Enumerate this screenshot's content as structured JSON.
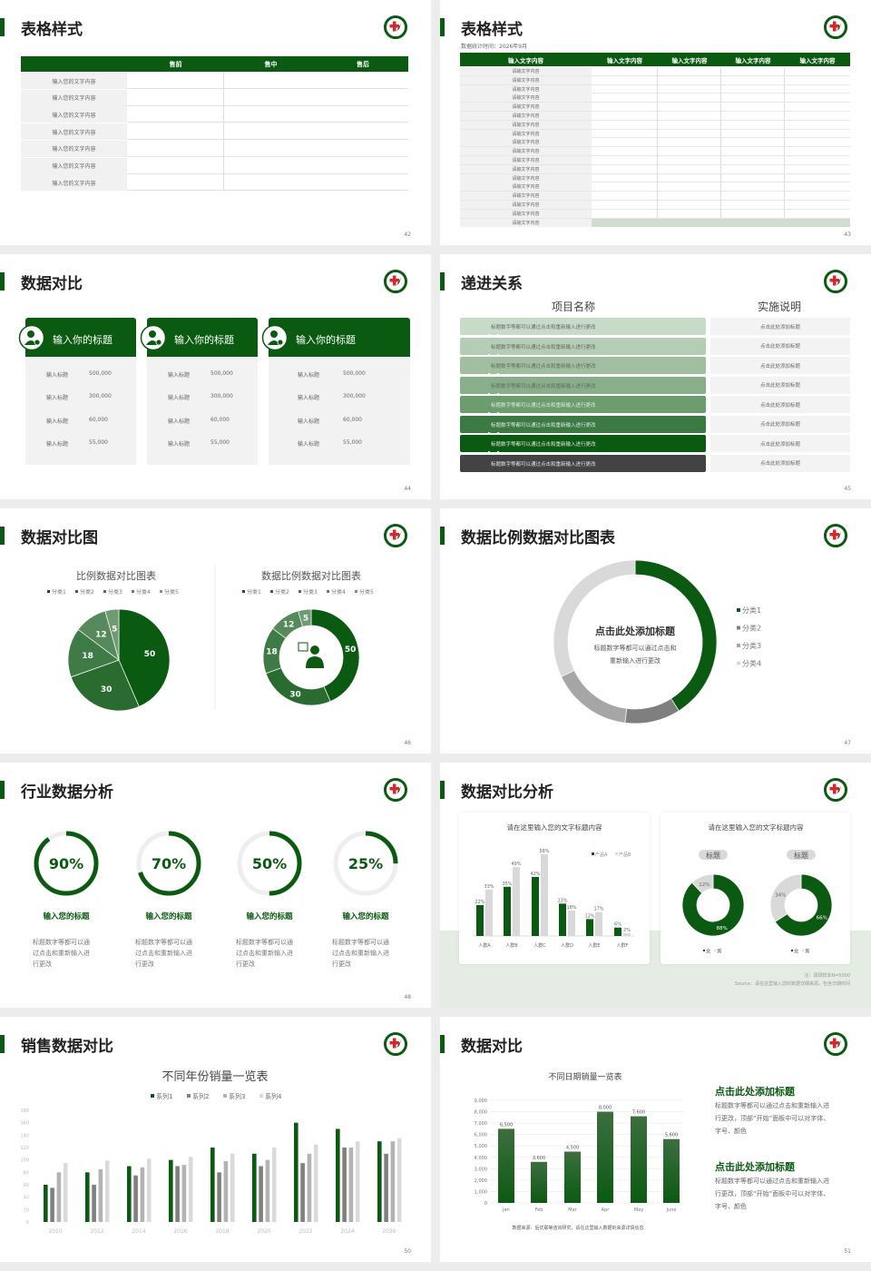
{
  "colors": {
    "brand_green": "#0b5a12",
    "accent_red": "#d9262c",
    "gray_cell": "#f1f1f1"
  },
  "slides": [
    {
      "page": "42",
      "title": "表格样式",
      "table": {
        "headers": [
          "",
          "售前",
          "售中",
          "售后"
        ],
        "rows": [
          "输入您的文字内容",
          "输入您的文字内容",
          "输入您的文字内容",
          "输入您的文字内容",
          "输入您的文字内容",
          "输入您的文字内容",
          "输入您的文字内容"
        ]
      }
    },
    {
      "page": "43",
      "title": "表格样式",
      "subtitle": "数据统计时间：2026年9月",
      "table": {
        "headers": [
          "输入文字内容",
          "输入文字内容",
          "输入文字内容",
          "输入文字内容",
          "输入文字内容"
        ],
        "rows": [
          "请输文字内容",
          "请输文字内容",
          "请输文字内容",
          "请输文字内容",
          "请输文字内容",
          "请输文字内容",
          "请输文字内容",
          "请输文字内容",
          "请输文字内容",
          "请输文字内容",
          "请输文字内容",
          "请输文字内容",
          "请输文字内容",
          "请输文字内容",
          "请输文字内容",
          "请输文字内容",
          "请输文字内容",
          "请输文字内容"
        ]
      }
    },
    {
      "page": "44",
      "title": "数据对比",
      "cards": [
        {
          "title": "输入你的标题",
          "icon": "phone-user-icon",
          "rows": [
            {
              "label": "输入标题",
              "value": "500,000"
            },
            {
              "label": "输入标题",
              "value": "300,000"
            },
            {
              "label": "输入标题",
              "value": "60,000"
            },
            {
              "label": "输入标题",
              "value": "55,000"
            }
          ]
        },
        {
          "title": "输入你的标题",
          "icon": "user-add-icon",
          "rows": [
            {
              "label": "输入标题",
              "value": "500,000"
            },
            {
              "label": "输入标题",
              "value": "300,000"
            },
            {
              "label": "输入标题",
              "value": "60,000"
            },
            {
              "label": "输入标题",
              "value": "55,000"
            }
          ]
        },
        {
          "title": "输入你的标题",
          "icon": "user-group-icon",
          "rows": [
            {
              "label": "输入标题",
              "value": "500,000"
            },
            {
              "label": "输入标题",
              "value": "300,000"
            },
            {
              "label": "输入标题",
              "value": "60,000"
            },
            {
              "label": "输入标题",
              "value": "55,000"
            }
          ]
        }
      ]
    },
    {
      "page": "45",
      "title": "递进关系",
      "col1": "项目名称",
      "col2": "实施说明",
      "row_colors": [
        "#c8dac8",
        "#b4cdb4",
        "#9fbf9f",
        "#88af8a",
        "#6b9d6f",
        "#3c7a43",
        "#0b5a12",
        "#434343"
      ],
      "rows": [
        {
          "text": "标题数字等都可以通过点击和重新输入进行更改",
          "note": "点击此处添加标题"
        },
        {
          "text": "标题数字等都可以通过点击和重新输入进行更改",
          "note": "点击此处添加标题"
        },
        {
          "text": "标题数字等都可以通过点击和重新输入进行更改",
          "note": "点击此处添加标题"
        },
        {
          "text": "标题数字等都可以通过点击和重新输入进行更改",
          "note": "点击此处添加标题"
        },
        {
          "text": "标题数字等都可以通过点击和重新输入进行更改",
          "note": "点击此处添加标题"
        },
        {
          "text": "标题数字等都可以通过点击和重新输入进行更改",
          "note": "点击此处添加标题"
        },
        {
          "text": "标题数字等都可以通过点击和重新输入进行更改",
          "note": "点击此处添加标题"
        },
        {
          "text": "标题数字等都可以通过点击和重新输入进行更改",
          "note": "点击此处添加标题"
        }
      ]
    },
    {
      "page": "46",
      "title": "数据对比图"
    },
    {
      "page": "47",
      "title": "数据比例数据对比图表",
      "center_title": "点击此处添加标题",
      "center_text": [
        "标题数字等都可以通过点击和",
        "重新输入进行更改"
      ]
    },
    {
      "page": "48",
      "title": "行业数据分析",
      "rings": [
        {
          "value": 90,
          "label": "90%",
          "title": "输入您的标题",
          "desc": [
            "标题数字等都可以通",
            "过点击和重新输入进",
            "行更改"
          ]
        },
        {
          "value": 70,
          "label": "70%",
          "title": "输入您的标题",
          "desc": [
            "标题数字等都可以通",
            "过点击和重新输入进",
            "行更改"
          ]
        },
        {
          "value": 50,
          "label": "50%",
          "title": "输入您的标题",
          "desc": [
            "标题数字等都可以通",
            "过点击和重新输入进",
            "行更改"
          ]
        },
        {
          "value": 25,
          "label": "25%",
          "title": "输入您的标题",
          "desc": [
            "标题数字等都可以通",
            "过点击和重新输入进",
            "行更改"
          ]
        }
      ]
    },
    {
      "page": "49",
      "title": "数据对比分析",
      "right_title": "请在这里输入您的文字标题内容",
      "tags": [
        "标题",
        "标题"
      ],
      "notes": [
        "注：调研样本N=5000",
        "Source：请在这里输入您的数据详细来源，包含日期时间"
      ]
    },
    {
      "page": "50",
      "title": "销售数据对比"
    },
    {
      "page": "51",
      "title": "数据对比",
      "blocks": [
        {
          "heading": "点击此处添加标题",
          "lines": [
            "标题数字等都可以通过点击和重新输入进",
            "行更改，顶部“开始”面板中可以对字体、",
            "字号、颜色"
          ]
        },
        {
          "heading": "点击此处添加标题",
          "lines": [
            "标题数字等都可以通过点击和重新输入进",
            "行更改，顶部“开始”面板中可以对字体、",
            "字号、颜色"
          ]
        }
      ]
    }
  ],
  "chart_data": [
    {
      "type": "pie",
      "title": "比例数据对比图表",
      "categories": [
        "分类1",
        "分类2",
        "分类3",
        "分类4",
        "分类5"
      ],
      "values": [
        50,
        30,
        18,
        12,
        5
      ],
      "colors": [
        "#0b5a12",
        "#2a6b30",
        "#3f7b46",
        "#56895b",
        "#6f9b73"
      ],
      "legend": "top"
    },
    {
      "type": "pie",
      "variant": "donut",
      "title": "数据比例数据对比图表",
      "categories": [
        "分类1",
        "分类2",
        "分类3",
        "分类4",
        "分类5"
      ],
      "values": [
        50,
        30,
        18,
        12,
        5
      ],
      "colors": [
        "#0b5a12",
        "#2a6b30",
        "#3f7b46",
        "#56895b",
        "#6f9b73"
      ],
      "legend": "top",
      "center_icon": "support-agent-icon"
    },
    {
      "type": "pie",
      "variant": "donut",
      "categories": [
        "分类1",
        "分类2",
        "分类3",
        "分类4"
      ],
      "values": [
        41,
        11,
        16,
        32
      ],
      "colors": [
        "#0b5a12",
        "#7f7f7f",
        "#a6a6a6",
        "#d9d9d9"
      ],
      "legend": "right"
    },
    {
      "type": "bar",
      "title": "请在这里输入您的文字标题内容",
      "categories": [
        "人群A",
        "人群B",
        "人群C",
        "人群D",
        "人群E",
        "人群F"
      ],
      "series": [
        {
          "name": "产品A",
          "values": [
            22,
            35,
            42,
            23,
            12,
            6
          ],
          "labels": [
            "22%",
            "35%",
            "42%",
            "23%",
            "12%",
            "6%"
          ],
          "color": "#0b5a12"
        },
        {
          "name": "产品B",
          "values": [
            33,
            49,
            58,
            18,
            17,
            2
          ],
          "labels": [
            "33%",
            "49%",
            "58%",
            "18%",
            "17%",
            "2%"
          ],
          "color": "#d9d9d9"
        }
      ],
      "legend": "top-right"
    },
    {
      "type": "pie",
      "variant": "donut",
      "categories": [
        "女",
        "男"
      ],
      "values": [
        88,
        12
      ],
      "labels": [
        "88%",
        "12%"
      ],
      "colors": [
        "#0b5a12",
        "#d9d9d9"
      ],
      "legend": "bottom"
    },
    {
      "type": "pie",
      "variant": "donut",
      "categories": [
        "女",
        "男"
      ],
      "values": [
        66,
        34
      ],
      "labels": [
        "66%",
        "34%"
      ],
      "colors": [
        "#0b5a12",
        "#d9d9d9"
      ],
      "legend": "bottom"
    },
    {
      "type": "bar",
      "title": "不同年份销量一览表",
      "categories": [
        "2010",
        "2012",
        "2014",
        "2016",
        "2018",
        "2020",
        "2022",
        "2024",
        "2026"
      ],
      "series": [
        {
          "name": "系列1",
          "values": [
            60,
            80,
            90,
            100,
            120,
            110,
            160,
            150,
            130
          ],
          "color": "#0b5a12"
        },
        {
          "name": "系列2",
          "values": [
            55,
            60,
            75,
            90,
            80,
            90,
            95,
            120,
            110
          ],
          "color": "#808080"
        },
        {
          "name": "系列3",
          "values": [
            80,
            85,
            88,
            92,
            98,
            100,
            110,
            120,
            130
          ],
          "color": "#b3b3b3"
        },
        {
          "name": "系列4",
          "values": [
            95,
            99,
            102,
            105,
            110,
            120,
            125,
            130,
            135
          ],
          "color": "#dadada"
        }
      ],
      "yticks": [
        "0",
        "20",
        "40",
        "60",
        "80",
        "100",
        "120",
        "140",
        "160",
        "180"
      ],
      "ylim": [
        0,
        180
      ],
      "legend": "top"
    },
    {
      "type": "bar",
      "title": "不同日期销量一览表",
      "categories": [
        "Jan",
        "Feb",
        "Mar",
        "Apr",
        "May",
        "June"
      ],
      "values": [
        6500,
        3600,
        4500,
        8000,
        7600,
        5600
      ],
      "labels": [
        "6,500",
        "3,600",
        "4,500",
        "8,000",
        "7,600",
        "5,600"
      ],
      "yticks": [
        "0",
        "1,000",
        "2,000",
        "3,000",
        "4,000",
        "5,000",
        "6,000",
        "7,000",
        "8,000",
        "9,000"
      ],
      "ylim": [
        0,
        9000
      ],
      "grid": true,
      "footnote": "数据来源：后优联等咨询研究，请在这里输入数据的来源详情信息"
    }
  ]
}
